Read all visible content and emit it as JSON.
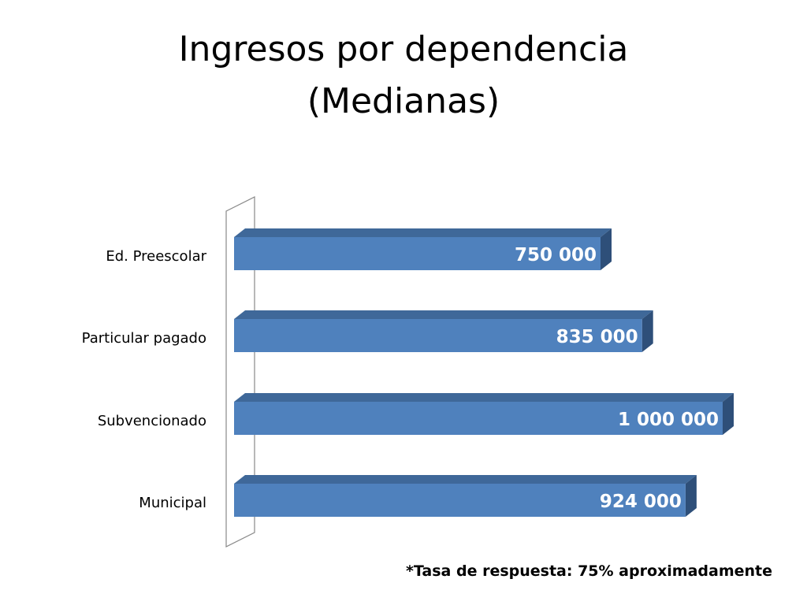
{
  "title_lines": [
    "Ingresos por dependencia",
    "(Medianas)"
  ],
  "footnote": "*Tasa de respuesta: 75% aproximadamente",
  "colors": {
    "bar_front": "#4f81bd",
    "bar_top": "#3f6899",
    "bar_end": "#2e4f79",
    "label_text": "#ffffff",
    "category_text": "#000000",
    "wall": "#888888"
  },
  "chart_data": {
    "type": "bar",
    "orientation": "horizontal",
    "style": "3d",
    "categories": [
      "Ed. Preescolar",
      "Particular pagado",
      "Subvencionado",
      "Municipal"
    ],
    "series": [
      {
        "values": [
          750000,
          835000,
          1000000,
          924000
        ],
        "data_labels": [
          "750 000",
          "835 000",
          "1 000 000",
          "924 000"
        ]
      }
    ],
    "xlim": [
      0,
      1000000
    ],
    "grid": false,
    "legend": "none",
    "axis_labels_visible": false
  }
}
